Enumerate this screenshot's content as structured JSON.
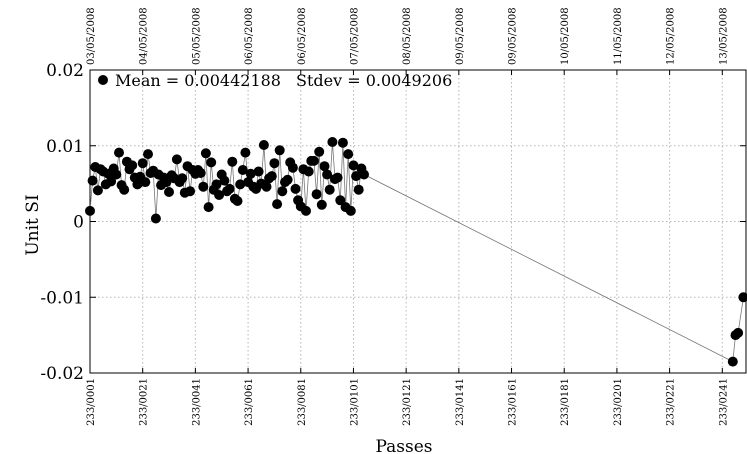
{
  "chart_data": {
    "type": "scatter",
    "ylabel": "Unit SI",
    "xlabel": "Passes",
    "ylim": [
      -0.02,
      0.02
    ],
    "yticks": [
      {
        "value": 0.02,
        "label": "0.02"
      },
      {
        "value": 0.01,
        "label": "0.01"
      },
      {
        "value": 0,
        "label": "0"
      },
      {
        "value": -0.01,
        "label": "-0.01"
      },
      {
        "value": -0.02,
        "label": "-0.02"
      }
    ],
    "xlim": [
      1,
      250
    ],
    "bottom_ticks": [
      {
        "value": 1,
        "label": "233/0001"
      },
      {
        "value": 21,
        "label": "233/0021"
      },
      {
        "value": 41,
        "label": "233/0041"
      },
      {
        "value": 61,
        "label": "233/0061"
      },
      {
        "value": 81,
        "label": "233/0081"
      },
      {
        "value": 101,
        "label": "233/0101"
      },
      {
        "value": 121,
        "label": "233/0121"
      },
      {
        "value": 141,
        "label": "233/0141"
      },
      {
        "value": 161,
        "label": "233/0161"
      },
      {
        "value": 181,
        "label": "233/0181"
      },
      {
        "value": 201,
        "label": "233/0201"
      },
      {
        "value": 221,
        "label": "233/0221"
      },
      {
        "value": 241,
        "label": "233/0241"
      }
    ],
    "top_ticks": [
      {
        "value": 1,
        "label": "03/05/2008"
      },
      {
        "value": 21,
        "label": "04/05/2008"
      },
      {
        "value": 41,
        "label": "05/05/2008"
      },
      {
        "value": 61,
        "label": "06/05/2008"
      },
      {
        "value": 81,
        "label": "06/05/2008"
      },
      {
        "value": 101,
        "label": "07/05/2008"
      },
      {
        "value": 121,
        "label": "08/05/2008"
      },
      {
        "value": 141,
        "label": "09/05/2008"
      },
      {
        "value": 161,
        "label": "09/05/2008"
      },
      {
        "value": 181,
        "label": "10/05/2008"
      },
      {
        "value": 201,
        "label": "11/05/2008"
      },
      {
        "value": 221,
        "label": "12/05/2008"
      },
      {
        "value": 241,
        "label": "13/05/2008"
      }
    ],
    "grid": true,
    "legend_marker": "filled-circle",
    "mean_text": "Mean = 0.00442188",
    "stdev_text": "Stdev = 0.0049206",
    "series": [
      {
        "points": [
          [
            1,
            0.0014
          ],
          [
            2,
            0.0054
          ],
          [
            3,
            0.0072
          ],
          [
            4,
            0.0041
          ],
          [
            5,
            0.0069
          ],
          [
            6,
            0.0066
          ],
          [
            7,
            0.0049
          ],
          [
            8,
            0.0063
          ],
          [
            9,
            0.0053
          ],
          [
            10,
            0.007
          ],
          [
            11,
            0.0062
          ],
          [
            12,
            0.0091
          ],
          [
            13,
            0.0048
          ],
          [
            14,
            0.0042
          ],
          [
            15,
            0.0079
          ],
          [
            16,
            0.0069
          ],
          [
            17,
            0.0074
          ],
          [
            18,
            0.0058
          ],
          [
            19,
            0.0049
          ],
          [
            20,
            0.0059
          ],
          [
            21,
            0.0077
          ],
          [
            22,
            0.0052
          ],
          [
            23,
            0.0089
          ],
          [
            24,
            0.0064
          ],
          [
            25,
            0.0067
          ],
          [
            26,
            0.0004
          ],
          [
            27,
            0.0062
          ],
          [
            28,
            0.0048
          ],
          [
            29,
            0.0058
          ],
          [
            30,
            0.0052
          ],
          [
            31,
            0.0039
          ],
          [
            32,
            0.0061
          ],
          [
            33,
            0.0057
          ],
          [
            34,
            0.0082
          ],
          [
            35,
            0.0052
          ],
          [
            36,
            0.0057
          ],
          [
            37,
            0.0038
          ],
          [
            38,
            0.0073
          ],
          [
            39,
            0.004
          ],
          [
            40,
            0.0068
          ],
          [
            41,
            0.0063
          ],
          [
            42,
            0.0068
          ],
          [
            43,
            0.0064
          ],
          [
            44,
            0.0046
          ],
          [
            45,
            0.009
          ],
          [
            46,
            0.0019
          ],
          [
            47,
            0.0078
          ],
          [
            48,
            0.0042
          ],
          [
            49,
            0.0049
          ],
          [
            50,
            0.0035
          ],
          [
            51,
            0.0062
          ],
          [
            52,
            0.0054
          ],
          [
            53,
            0.004
          ],
          [
            54,
            0.0043
          ],
          [
            55,
            0.0079
          ],
          [
            56,
            0.003
          ],
          [
            57,
            0.0027
          ],
          [
            58,
            0.0049
          ],
          [
            59,
            0.0068
          ],
          [
            60,
            0.0091
          ],
          [
            61,
            0.0052
          ],
          [
            62,
            0.0063
          ],
          [
            63,
            0.0046
          ],
          [
            64,
            0.0043
          ],
          [
            65,
            0.0066
          ],
          [
            66,
            0.005
          ],
          [
            67,
            0.0101
          ],
          [
            68,
            0.0046
          ],
          [
            69,
            0.0057
          ],
          [
            70,
            0.006
          ],
          [
            71,
            0.0077
          ],
          [
            72,
            0.0023
          ],
          [
            73,
            0.0094
          ],
          [
            74,
            0.004
          ],
          [
            75,
            0.0052
          ],
          [
            76,
            0.0055
          ],
          [
            77,
            0.0078
          ],
          [
            78,
            0.0071
          ],
          [
            79,
            0.0043
          ],
          [
            80,
            0.0028
          ],
          [
            81,
            0.002
          ],
          [
            82,
            0.0069
          ],
          [
            83,
            0.0014
          ],
          [
            84,
            0.0066
          ],
          [
            85,
            0.008
          ],
          [
            86,
            0.008
          ],
          [
            87,
            0.0036
          ],
          [
            88,
            0.0092
          ],
          [
            89,
            0.0022
          ],
          [
            90,
            0.0073
          ],
          [
            91,
            0.0062
          ],
          [
            92,
            0.0042
          ],
          [
            93,
            0.0105
          ],
          [
            94,
            0.0056
          ],
          [
            95,
            0.0058
          ],
          [
            96,
            0.0028
          ],
          [
            97,
            0.0104
          ],
          [
            98,
            0.0019
          ],
          [
            99,
            0.0089
          ],
          [
            100,
            0.0014
          ],
          [
            101,
            0.0074
          ],
          [
            102,
            0.006
          ],
          [
            103,
            0.0042
          ],
          [
            104,
            0.007
          ],
          [
            105,
            0.0062
          ],
          [
            245,
            -0.0185
          ],
          [
            246,
            -0.015
          ],
          [
            247,
            -0.0147
          ],
          [
            249,
            -0.01
          ]
        ]
      }
    ]
  }
}
